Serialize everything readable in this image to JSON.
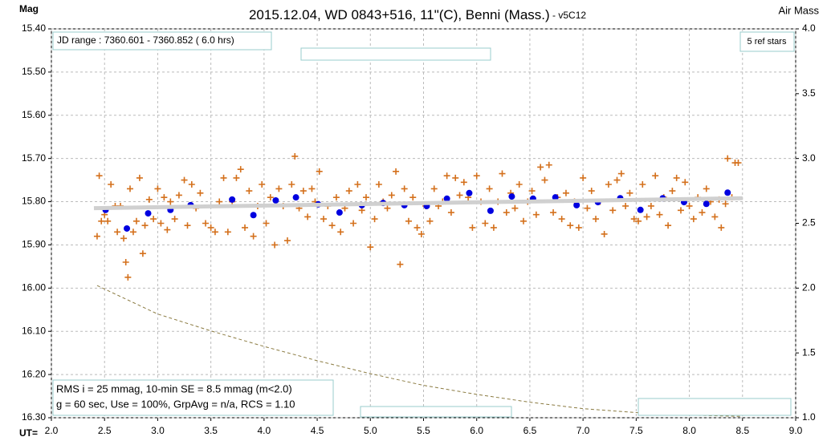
{
  "chart_data": {
    "type": "scatter",
    "title": "2015.12.04, WD 0843+516, 11\"(C), Benni (Mass.)",
    "version": " - v5C12",
    "y_label": "Mag",
    "y2_label": "Air Mass",
    "x_label": "UT=",
    "annotations": {
      "jd_range": "JD range : 7360.601 - 7360.852 ( 6.0 hrs)",
      "ref_stars": "5 ref stars",
      "stats_1": "RMS i = 25 mmag, 10-min SE = 8.5 mmag (m<2.0)",
      "stats_2": "g = 60 sec, Use = 100%, GrpAvg = n/a, RCS = 1.10"
    },
    "xlim": [
      2.0,
      9.0
    ],
    "xticks": [
      {
        "value": 2.0,
        "label": "2.0"
      },
      2.5,
      {
        "value": 3.0,
        "label": "3.0"
      },
      3.5,
      {
        "value": 4.0,
        "label": "4.0"
      },
      4.5,
      {
        "value": 5.0,
        "label": "5.0"
      },
      5.5,
      {
        "value": 6.0,
        "label": "6.0"
      },
      6.5,
      {
        "value": 7.0,
        "label": "7.0"
      },
      7.5,
      {
        "value": 8.0,
        "label": "8.0"
      },
      8.5,
      {
        "value": 9.0,
        "label": "9.0"
      }
    ],
    "ylim": [
      16.3,
      15.4
    ],
    "yticks": [
      {
        "value": 15.4,
        "label": "15.40"
      },
      {
        "value": 15.5,
        "label": "15.50"
      },
      {
        "value": 15.6,
        "label": "15.60"
      },
      {
        "value": 15.7,
        "label": "15.70"
      },
      {
        "value": 15.8,
        "label": "15.80"
      },
      {
        "value": 15.9,
        "label": "15.90"
      },
      {
        "value": 16.0,
        "label": "16.00"
      },
      {
        "value": 16.1,
        "label": "16.10"
      },
      {
        "value": 16.2,
        "label": "16.20"
      },
      {
        "value": 16.3,
        "label": "16.30"
      }
    ],
    "y2lim": [
      1.0,
      4.0
    ],
    "y2ticks": [
      {
        "value": 1.0,
        "label": "1.0"
      },
      1.5,
      {
        "value": 2.0,
        "label": "2.0"
      },
      2.5,
      {
        "value": 3.0,
        "label": "3.0"
      },
      3.5,
      {
        "value": 4.0,
        "label": "4.0"
      }
    ],
    "grid": true,
    "series": [
      {
        "color": "#d4701c",
        "marker": "plus",
        "x": [
          2.43,
          2.45,
          2.47,
          2.5,
          2.53,
          2.56,
          2.6,
          2.62,
          2.65,
          2.68,
          2.7,
          2.72,
          2.74,
          2.77,
          2.8,
          2.83,
          2.86,
          2.88,
          2.92,
          2.96,
          3.0,
          3.03,
          3.06,
          3.09,
          3.12,
          3.16,
          3.2,
          3.25,
          3.28,
          3.32,
          3.36,
          3.4,
          3.45,
          3.5,
          3.54,
          3.58,
          3.62,
          3.66,
          3.7,
          3.74,
          3.78,
          3.82,
          3.86,
          3.9,
          3.94,
          3.98,
          4.02,
          4.06,
          4.1,
          4.14,
          4.18,
          4.22,
          4.26,
          4.29,
          4.33,
          4.37,
          4.41,
          4.45,
          4.48,
          4.52,
          4.56,
          4.6,
          4.64,
          4.68,
          4.72,
          4.76,
          4.8,
          4.84,
          4.88,
          4.92,
          4.96,
          5.0,
          5.04,
          5.08,
          5.12,
          5.16,
          5.2,
          5.24,
          5.28,
          5.32,
          5.36,
          5.4,
          5.44,
          5.48,
          5.52,
          5.56,
          5.6,
          5.64,
          5.68,
          5.72,
          5.76,
          5.8,
          5.84,
          5.88,
          5.92,
          5.96,
          6.0,
          6.04,
          6.08,
          6.12,
          6.16,
          6.2,
          6.24,
          6.28,
          6.32,
          6.36,
          6.4,
          6.44,
          6.48,
          6.52,
          6.56,
          6.6,
          6.64,
          6.68,
          6.72,
          6.76,
          6.8,
          6.84,
          6.88,
          6.92,
          6.96,
          7.0,
          7.04,
          7.08,
          7.12,
          7.16,
          7.2,
          7.24,
          7.28,
          7.32,
          7.36,
          7.4,
          7.44,
          7.48,
          7.52,
          7.56,
          7.6,
          7.64,
          7.68,
          7.72,
          7.76,
          7.8,
          7.84,
          7.88,
          7.92,
          7.96,
          8.0,
          8.04,
          8.08,
          8.12,
          8.16,
          8.2,
          8.24,
          8.28,
          8.3,
          8.34,
          8.36,
          8.4,
          8.43,
          8.46
        ],
        "values": [
          15.88,
          15.74,
          15.845,
          15.83,
          15.845,
          15.76,
          15.81,
          15.87,
          15.81,
          15.885,
          15.94,
          15.975,
          15.77,
          15.87,
          15.845,
          15.745,
          15.92,
          15.855,
          15.795,
          15.84,
          15.77,
          15.85,
          15.79,
          15.865,
          15.8,
          15.84,
          15.785,
          15.75,
          15.855,
          15.76,
          15.815,
          15.78,
          15.85,
          15.86,
          15.87,
          15.8,
          15.745,
          15.87,
          15.8,
          15.745,
          15.725,
          15.86,
          15.775,
          15.88,
          15.81,
          15.76,
          15.85,
          15.79,
          15.9,
          15.77,
          15.81,
          15.89,
          15.76,
          15.695,
          15.815,
          15.775,
          15.835,
          15.77,
          15.8,
          15.73,
          15.84,
          15.81,
          15.855,
          15.79,
          15.87,
          15.815,
          15.775,
          15.85,
          15.76,
          15.82,
          15.79,
          15.905,
          15.84,
          15.76,
          15.8,
          15.815,
          15.785,
          15.73,
          15.945,
          15.77,
          15.845,
          15.79,
          15.86,
          15.875,
          15.81,
          15.845,
          15.77,
          15.81,
          15.8,
          15.74,
          15.825,
          15.745,
          15.785,
          15.755,
          15.79,
          15.86,
          15.74,
          15.8,
          15.85,
          15.77,
          15.86,
          15.8,
          15.735,
          15.825,
          15.78,
          15.815,
          15.76,
          15.845,
          15.8,
          15.775,
          15.83,
          15.72,
          15.75,
          15.715,
          15.825,
          15.79,
          15.84,
          15.78,
          15.855,
          15.8,
          15.86,
          15.745,
          15.815,
          15.775,
          15.84,
          15.8,
          15.875,
          15.76,
          15.82,
          15.75,
          15.735,
          15.81,
          15.78,
          15.84,
          15.845,
          15.76,
          15.835,
          15.81,
          15.74,
          15.83,
          15.79,
          15.855,
          15.775,
          15.745,
          15.82,
          15.755,
          15.81,
          15.84,
          15.79,
          15.825,
          15.77,
          15.8,
          15.835,
          15.795,
          15.86,
          15.805,
          15.7,
          15.79,
          15.71,
          15.71
        ]
      },
      {
        "color": "#0000e0",
        "marker": "circle",
        "x": [
          2.51,
          2.71,
          2.91,
          3.12,
          3.31,
          3.7,
          3.9,
          4.11,
          4.3,
          4.51,
          4.71,
          4.92,
          5.12,
          5.32,
          5.53,
          5.72,
          5.93,
          6.13,
          6.33,
          6.53,
          6.74,
          6.94,
          7.14,
          7.35,
          7.54,
          7.75,
          7.95,
          8.16,
          8.36
        ],
        "values": [
          15.819,
          15.862,
          15.827,
          15.819,
          15.808,
          15.795,
          15.831,
          15.797,
          15.79,
          15.806,
          15.825,
          15.808,
          15.803,
          15.808,
          15.81,
          15.793,
          15.78,
          15.821,
          15.788,
          15.793,
          15.79,
          15.808,
          15.801,
          15.792,
          15.819,
          15.792,
          15.801,
          15.805,
          15.779
        ]
      },
      {
        "color": "#d0d0d0",
        "marker": "line",
        "x": [
          2.4,
          8.5
        ],
        "values": [
          15.815,
          15.792
        ]
      },
      {
        "color": "#8a7a40",
        "marker": "dashed",
        "axis": "y2",
        "x": [
          2.43,
          3.0,
          3.5,
          4.0,
          4.5,
          5.0,
          5.5,
          6.0,
          6.5,
          7.0,
          7.5,
          8.0,
          8.5
        ],
        "values": [
          2.02,
          1.8,
          1.67,
          1.55,
          1.44,
          1.34,
          1.25,
          1.18,
          1.12,
          1.07,
          1.04,
          1.02,
          1.01
        ]
      }
    ]
  }
}
